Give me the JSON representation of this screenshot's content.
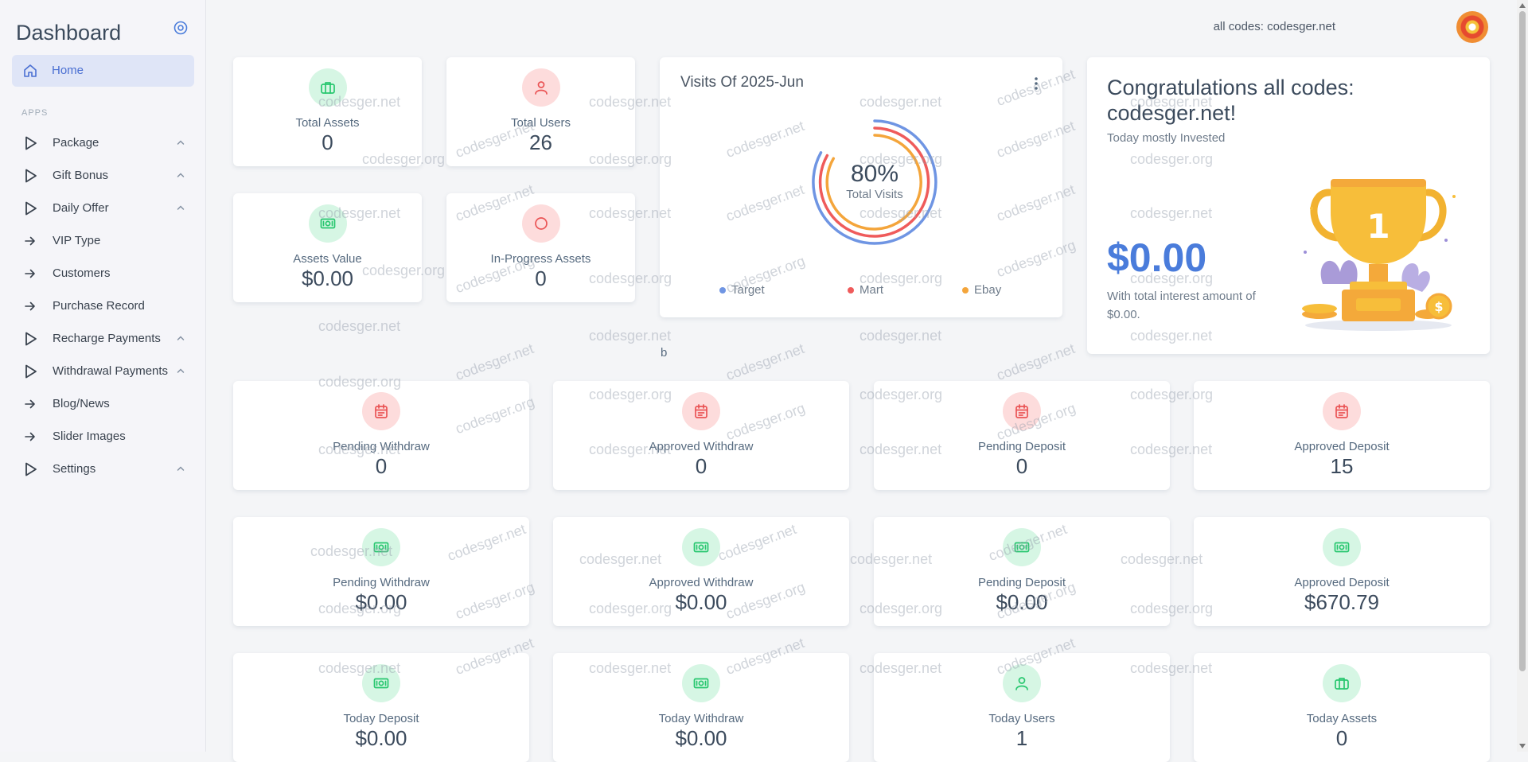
{
  "sidebar": {
    "brand": "Dashboard",
    "home_label": "Home",
    "section_header": "APPS",
    "items": [
      {
        "label": "Package",
        "icon": "play-triangle-icon",
        "has_submenu": true
      },
      {
        "label": "Gift Bonus",
        "icon": "play-triangle-icon",
        "has_submenu": true
      },
      {
        "label": "Daily Offer",
        "icon": "play-triangle-icon",
        "has_submenu": true
      },
      {
        "label": "VIP Type",
        "icon": "arrow-right-icon",
        "has_submenu": false
      },
      {
        "label": "Customers",
        "icon": "arrow-right-icon",
        "has_submenu": false
      },
      {
        "label": "Purchase Record",
        "icon": "arrow-right-icon",
        "has_submenu": false
      },
      {
        "label": "Recharge Payments",
        "icon": "play-triangle-icon",
        "has_submenu": true
      },
      {
        "label": "Withdrawal Payments",
        "icon": "play-triangle-icon",
        "has_submenu": true
      },
      {
        "label": "Blog/News",
        "icon": "arrow-right-icon",
        "has_submenu": false
      },
      {
        "label": "Slider Images",
        "icon": "arrow-right-icon",
        "has_submenu": false
      },
      {
        "label": "Settings",
        "icon": "play-triangle-icon",
        "has_submenu": true
      }
    ]
  },
  "topbar": {
    "user_text": "all codes: codesger.net"
  },
  "small_stats": [
    {
      "title": "Total Assets",
      "value": "0",
      "icon": "briefcase-icon",
      "tone": "green"
    },
    {
      "title": "Total Users",
      "value": "26",
      "icon": "user-icon",
      "tone": "red"
    },
    {
      "title": "Assets Value",
      "value": "$0.00",
      "icon": "cash-icon",
      "tone": "green"
    },
    {
      "title": "In-Progress Assets",
      "value": "0",
      "icon": "circle-icon",
      "tone": "red"
    }
  ],
  "visits": {
    "title": "Visits Of 2025-Jun",
    "center_value": "80%",
    "center_caption": "Total Visits",
    "legend": [
      {
        "name": "Target",
        "color": "#6f95e3"
      },
      {
        "name": "Mart",
        "color": "#ef5b5b"
      },
      {
        "name": "Ebay",
        "color": "#f4a53b"
      }
    ]
  },
  "congrats": {
    "title": "Congratulations all codes: codesger.net!",
    "subtitle": "Today mostly Invested",
    "amount": "$0.00",
    "note": "With total interest amount of $0.00."
  },
  "stray_text": "b",
  "row_stats_1": [
    {
      "title": "Pending Withdraw",
      "value": "0",
      "icon": "calendar-icon",
      "tone": "red"
    },
    {
      "title": "Approved Withdraw",
      "value": "0",
      "icon": "calendar-icon",
      "tone": "red"
    },
    {
      "title": "Pending Deposit",
      "value": "0",
      "icon": "calendar-icon",
      "tone": "red"
    },
    {
      "title": "Approved Deposit",
      "value": "15",
      "icon": "calendar-icon",
      "tone": "red"
    }
  ],
  "row_stats_2": [
    {
      "title": "Pending Withdraw",
      "value": "$0.00",
      "icon": "cash-icon",
      "tone": "green"
    },
    {
      "title": "Approved Withdraw",
      "value": "$0.00",
      "icon": "cash-icon",
      "tone": "green"
    },
    {
      "title": "Pending Deposit",
      "value": "$0.00",
      "icon": "cash-icon",
      "tone": "green"
    },
    {
      "title": "Approved Deposit",
      "value": "$670.79",
      "icon": "cash-icon",
      "tone": "green"
    }
  ],
  "row_stats_3": [
    {
      "title": "Today Deposit",
      "value": "$0.00",
      "icon": "cash-icon",
      "tone": "green"
    },
    {
      "title": "Today Withdraw",
      "value": "$0.00",
      "icon": "cash-icon",
      "tone": "green"
    },
    {
      "title": "Today Users",
      "value": "1",
      "icon": "user-icon",
      "tone": "green"
    },
    {
      "title": "Today Assets",
      "value": "0",
      "icon": "briefcase-icon",
      "tone": "green"
    }
  ],
  "watermarks": [
    "codesger.net",
    "codesger.org"
  ],
  "colors": {
    "accent": "#4a7cdb",
    "green_bg": "#d6f6e4",
    "green_fg": "#28c76f",
    "red_bg": "#fddcdc",
    "red_fg": "#ea5455"
  }
}
